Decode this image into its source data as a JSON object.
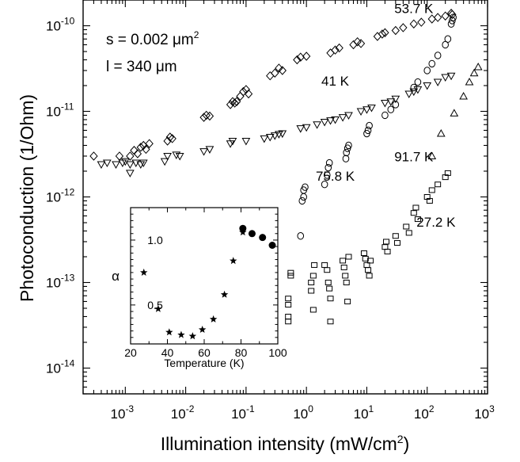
{
  "chart_data": [
    {
      "type": "scatter",
      "title": "",
      "xlabel": "Illumination intensity (mW/cm",
      "xlabel_sup": "2",
      "xlabel_tail": ")",
      "ylabel": "Photoconduction (1/Ohm)",
      "xscale": "log",
      "yscale": "log",
      "xlim": [
        0.0002,
        1000
      ],
      "ylim": [
        5e-15,
        2e-10
      ],
      "x_ticks": [
        {
          "value": 0.001,
          "base": "10",
          "exp": "-3"
        },
        {
          "value": 0.01,
          "base": "10",
          "exp": "-2"
        },
        {
          "value": 0.1,
          "base": "10",
          "exp": "-1"
        },
        {
          "value": 1,
          "base": "10",
          "exp": "0"
        },
        {
          "value": 10,
          "base": "10",
          "exp": "1"
        },
        {
          "value": 100,
          "base": "10",
          "exp": "2"
        },
        {
          "value": 1000,
          "base": "10",
          "exp": "3"
        }
      ],
      "y_ticks": [
        {
          "value": 1e-14,
          "base": "10",
          "exp": "-14"
        },
        {
          "value": 1e-13,
          "base": "10",
          "exp": "-13"
        },
        {
          "value": 1e-12,
          "base": "10",
          "exp": "-12"
        },
        {
          "value": 1e-11,
          "base": "10",
          "exp": "-11"
        },
        {
          "value": 1e-10,
          "base": "10",
          "exp": "-10"
        }
      ],
      "annotations": {
        "area_prefix": "s = 0.002 ",
        "area_unit": "μm",
        "area_sup": "2",
        "length": "l = 340 μm"
      },
      "series": [
        {
          "name": "53.7 K",
          "marker": "diamond",
          "label_at": [
            60,
            1.4e-10
          ],
          "points": [
            [
              0.0003,
              3e-12
            ],
            [
              0.0008,
              3e-12
            ],
            [
              0.0012,
              3e-12
            ],
            [
              0.0014,
              3.5e-12
            ],
            [
              0.0016,
              3.2e-12
            ],
            [
              0.0018,
              3.8e-12
            ],
            [
              0.002,
              4e-12
            ],
            [
              0.0022,
              3.6e-12
            ],
            [
              0.0025,
              4.2e-12
            ],
            [
              0.005,
              4.5e-12
            ],
            [
              0.0055,
              5e-12
            ],
            [
              0.006,
              4.8e-12
            ],
            [
              0.02,
              8.5e-12
            ],
            [
              0.022,
              9e-12
            ],
            [
              0.025,
              8.8e-12
            ],
            [
              0.055,
              1.2e-11
            ],
            [
              0.06,
              1.3e-11
            ],
            [
              0.065,
              1.25e-11
            ],
            [
              0.07,
              1.3e-11
            ],
            [
              0.08,
              1.5e-11
            ],
            [
              0.09,
              1.7e-11
            ],
            [
              0.1,
              1.8e-11
            ],
            [
              0.11,
              1.6e-11
            ],
            [
              0.25,
              2.6e-11
            ],
            [
              0.3,
              2.8e-11
            ],
            [
              0.35,
              3.2e-11
            ],
            [
              0.4,
              3e-11
            ],
            [
              0.7,
              4e-11
            ],
            [
              0.8,
              4.3e-11
            ],
            [
              1.0,
              4.4e-11
            ],
            [
              2.5,
              4.8e-11
            ],
            [
              3.0,
              5.2e-11
            ],
            [
              3.5,
              5.5e-11
            ],
            [
              6,
              6e-11
            ],
            [
              7,
              6.5e-11
            ],
            [
              8,
              6.2e-11
            ],
            [
              15,
              7.5e-11
            ],
            [
              18,
              8e-11
            ],
            [
              20,
              8.3e-11
            ],
            [
              30,
              8.8e-11
            ],
            [
              40,
              9.5e-11
            ],
            [
              60,
              1.05e-10
            ],
            [
              80,
              1.1e-10
            ],
            [
              120,
              1.2e-10
            ],
            [
              150,
              1.25e-10
            ],
            [
              200,
              1.3e-10
            ],
            [
              250,
              1.4e-10
            ],
            [
              260,
              1.35e-10
            ]
          ]
        },
        {
          "name": "41 K",
          "marker": "triangle-down",
          "label_at": [
            3,
            2e-11
          ],
          "points": [
            [
              0.0004,
              2.4e-12
            ],
            [
              0.0005,
              2.5e-12
            ],
            [
              0.0007,
              2.4e-12
            ],
            [
              0.0009,
              2.5e-12
            ],
            [
              0.001,
              2.6e-12
            ],
            [
              0.0012,
              2.4e-12
            ],
            [
              0.0015,
              2.5e-12
            ],
            [
              0.0018,
              2.4e-12
            ],
            [
              0.002,
              2.5e-12
            ],
            [
              0.0012,
              1.9e-12
            ],
            [
              0.0045,
              2.6e-12
            ],
            [
              0.005,
              3e-12
            ],
            [
              0.007,
              3.1e-12
            ],
            [
              0.008,
              3e-12
            ],
            [
              0.02,
              3.4e-12
            ],
            [
              0.025,
              3.6e-12
            ],
            [
              0.055,
              4.2e-12
            ],
            [
              0.06,
              4.5e-12
            ],
            [
              0.1,
              4.5e-12
            ],
            [
              0.2,
              4.8e-12
            ],
            [
              0.25,
              5e-12
            ],
            [
              0.3,
              5.2e-12
            ],
            [
              0.35,
              5.4e-12
            ],
            [
              0.4,
              5.5e-12
            ],
            [
              0.8,
              6.3e-12
            ],
            [
              1.0,
              6.5e-12
            ],
            [
              1.5,
              7e-12
            ],
            [
              2,
              7.5e-12
            ],
            [
              2.5,
              7.8e-12
            ],
            [
              3,
              8e-12
            ],
            [
              4,
              8.5e-12
            ],
            [
              5,
              9e-12
            ],
            [
              8,
              1e-11
            ],
            [
              10,
              1.05e-11
            ],
            [
              12,
              1.1e-11
            ],
            [
              20,
              1.25e-11
            ],
            [
              25,
              1.3e-11
            ],
            [
              30,
              1.4e-11
            ],
            [
              50,
              1.6e-11
            ],
            [
              60,
              1.7e-11
            ],
            [
              70,
              1.8e-11
            ],
            [
              100,
              2e-11
            ],
            [
              150,
              2.2e-11
            ],
            [
              200,
              2.5e-11
            ],
            [
              250,
              2.6e-11
            ]
          ]
        },
        {
          "name": "91.7 K",
          "marker": "triangle-up",
          "label_at": [
            60,
            2.6e-12
          ],
          "points": [
            [
              120,
              3e-12
            ],
            [
              170,
              5.5e-12
            ],
            [
              280,
              9.5e-12
            ],
            [
              400,
              1.5e-11
            ],
            [
              500,
              2.2e-11
            ],
            [
              600,
              2.8e-11
            ],
            [
              700,
              3.3e-11
            ]
          ]
        },
        {
          "name": "75.8 K",
          "marker": "circle",
          "label_at": [
            3,
            1.55e-12
          ],
          "points": [
            [
              0.8,
              3.5e-13
            ],
            [
              0.85,
              9e-13
            ],
            [
              0.9,
              1e-12
            ],
            [
              0.9,
              1.2e-12
            ],
            [
              0.95,
              1.3e-12
            ],
            [
              2,
              1.4e-12
            ],
            [
              2.2,
              1.8e-12
            ],
            [
              2.3,
              2.2e-12
            ],
            [
              2.4,
              2.5e-12
            ],
            [
              4.5,
              2.8e-12
            ],
            [
              4.6,
              3.3e-12
            ],
            [
              4.8,
              3.7e-12
            ],
            [
              5,
              4e-12
            ],
            [
              10,
              5.5e-12
            ],
            [
              10.5,
              6e-12
            ],
            [
              11,
              6.8e-12
            ],
            [
              20,
              9e-12
            ],
            [
              25,
              1.05e-11
            ],
            [
              30,
              1.2e-11
            ],
            [
              60,
              1.9e-11
            ],
            [
              70,
              2.2e-11
            ],
            [
              100,
              3e-11
            ],
            [
              120,
              3.6e-11
            ],
            [
              150,
              4.5e-11
            ],
            [
              200,
              6e-11
            ],
            [
              220,
              7e-11
            ],
            [
              250,
              1.05e-10
            ],
            [
              260,
              1.15e-10
            ],
            [
              270,
              1.25e-10
            ]
          ]
        },
        {
          "name": "27.2 K",
          "marker": "square",
          "label_at": [
            140,
            4.5e-13
          ],
          "points": [
            [
              0.5,
              6.5e-14
            ],
            [
              0.5,
              5.5e-14
            ],
            [
              0.5,
              4e-14
            ],
            [
              0.5,
              3.5e-14
            ],
            [
              0.55,
              1.3e-13
            ],
            [
              0.55,
              1.2e-13
            ],
            [
              1.2,
              1e-13
            ],
            [
              1.2,
              8e-14
            ],
            [
              1.3,
              1.2e-13
            ],
            [
              1.3,
              4.8e-14
            ],
            [
              1.35,
              1.6e-13
            ],
            [
              2,
              1.6e-13
            ],
            [
              2.2,
              1.4e-13
            ],
            [
              2.3,
              1e-13
            ],
            [
              2.4,
              8.5e-14
            ],
            [
              2.5,
              6.5e-14
            ],
            [
              2.5,
              3.5e-14
            ],
            [
              4,
              1.8e-13
            ],
            [
              4.2,
              1.5e-13
            ],
            [
              4.4,
              1.2e-13
            ],
            [
              4.6,
              1e-13
            ],
            [
              4.8,
              6e-14
            ],
            [
              5,
              2e-13
            ],
            [
              9,
              2.2e-13
            ],
            [
              9.5,
              1.9e-13
            ],
            [
              10,
              1.6e-13
            ],
            [
              10.5,
              1.4e-13
            ],
            [
              11,
              1.2e-13
            ],
            [
              11.5,
              1.8e-13
            ],
            [
              20,
              2.6e-13
            ],
            [
              21,
              3e-13
            ],
            [
              22,
              2.3e-13
            ],
            [
              30,
              3.5e-13
            ],
            [
              32,
              2.9e-13
            ],
            [
              45,
              4.5e-13
            ],
            [
              50,
              3.8e-13
            ],
            [
              60,
              6.5e-13
            ],
            [
              65,
              7.5e-13
            ],
            [
              70,
              5.5e-13
            ],
            [
              100,
              1e-12
            ],
            [
              110,
              9e-13
            ],
            [
              120,
              1.2e-12
            ],
            [
              150,
              1.4e-12
            ],
            [
              200,
              1.7e-12
            ],
            [
              220,
              1.9e-12
            ]
          ]
        }
      ]
    },
    {
      "type": "scatter",
      "title": "",
      "xlabel": "Temperature (K)",
      "ylabel": "α",
      "xlim": [
        20,
        100
      ],
      "ylim": [
        0.2,
        1.25
      ],
      "x_ticks": [
        20,
        40,
        60,
        80,
        100
      ],
      "y_tick_labels": [
        {
          "value": 0.5,
          "label": "0.5"
        },
        {
          "value": 1.0,
          "label": "1.0"
        }
      ],
      "series": [
        {
          "marker": "star",
          "points": [
            [
              27.2,
              0.75
            ],
            [
              35,
              0.47
            ],
            [
              41,
              0.29
            ],
            [
              47.5,
              0.27
            ],
            [
              53.7,
              0.26
            ],
            [
              59,
              0.31
            ],
            [
              65,
              0.39
            ],
            [
              71,
              0.58
            ],
            [
              75.8,
              0.84
            ],
            [
              81,
              1.06
            ]
          ]
        },
        {
          "marker": "filled-circle",
          "points": [
            [
              81,
              1.09
            ],
            [
              86,
              1.05
            ],
            [
              91.7,
              1.02
            ],
            [
              97,
              0.96
            ]
          ]
        }
      ]
    }
  ]
}
